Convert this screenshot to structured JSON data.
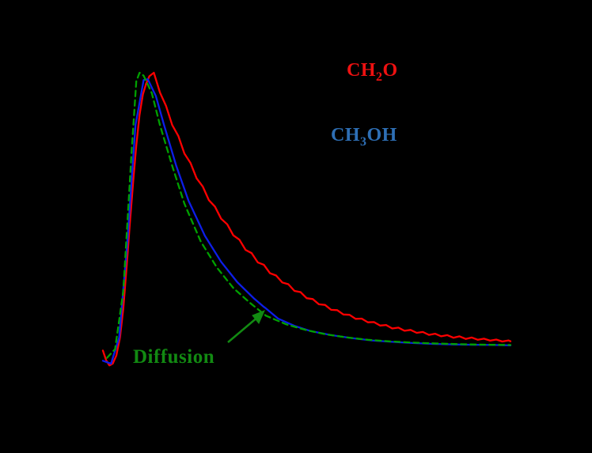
{
  "chart_data": {
    "type": "line",
    "title": "",
    "xlabel": "",
    "ylabel": "",
    "xlim": [
      0,
      10
    ],
    "ylim": [
      0,
      1.1
    ],
    "grid": false,
    "legend_position": "none",
    "background": "#000000",
    "series": [
      {
        "name": "CH2O",
        "color": "#ff0000",
        "style": "solid",
        "points": [
          [
            0,
            0.045
          ],
          [
            0.08,
            0.012
          ],
          [
            0.16,
            -0.006
          ],
          [
            0.24,
            0.0
          ],
          [
            0.33,
            0.028
          ],
          [
            0.42,
            0.09
          ],
          [
            0.5,
            0.19
          ],
          [
            0.58,
            0.33
          ],
          [
            0.66,
            0.48
          ],
          [
            0.74,
            0.62
          ],
          [
            0.82,
            0.75
          ],
          [
            0.9,
            0.855
          ],
          [
            0.98,
            0.925
          ],
          [
            1.06,
            0.962
          ],
          [
            1.14,
            0.988
          ],
          [
            1.25,
            1.0
          ],
          [
            1.4,
            0.932
          ],
          [
            1.55,
            0.886
          ],
          [
            1.7,
            0.82
          ],
          [
            1.85,
            0.783
          ],
          [
            2.0,
            0.722
          ],
          [
            2.15,
            0.69
          ],
          [
            2.3,
            0.637
          ],
          [
            2.45,
            0.609
          ],
          [
            2.6,
            0.562
          ],
          [
            2.75,
            0.54
          ],
          [
            2.9,
            0.498
          ],
          [
            3.05,
            0.479
          ],
          [
            3.2,
            0.441
          ],
          [
            3.35,
            0.426
          ],
          [
            3.5,
            0.391
          ],
          [
            3.65,
            0.38
          ],
          [
            3.8,
            0.348
          ],
          [
            3.95,
            0.34
          ],
          [
            4.1,
            0.311
          ],
          [
            4.25,
            0.303
          ],
          [
            4.4,
            0.279
          ],
          [
            4.55,
            0.273
          ],
          [
            4.7,
            0.25
          ],
          [
            4.85,
            0.246
          ],
          [
            5.0,
            0.225
          ],
          [
            5.15,
            0.222
          ],
          [
            5.3,
            0.204
          ],
          [
            5.45,
            0.202
          ],
          [
            5.6,
            0.185
          ],
          [
            5.75,
            0.184
          ],
          [
            5.9,
            0.169
          ],
          [
            6.05,
            0.168
          ],
          [
            6.2,
            0.154
          ],
          [
            6.35,
            0.155
          ],
          [
            6.5,
            0.142
          ],
          [
            6.65,
            0.143
          ],
          [
            6.8,
            0.131
          ],
          [
            6.95,
            0.133
          ],
          [
            7.1,
            0.121
          ],
          [
            7.25,
            0.124
          ],
          [
            7.4,
            0.113
          ],
          [
            7.55,
            0.116
          ],
          [
            7.7,
            0.106
          ],
          [
            7.85,
            0.109
          ],
          [
            8.0,
            0.099
          ],
          [
            8.15,
            0.103
          ],
          [
            8.3,
            0.094
          ],
          [
            8.45,
            0.098
          ],
          [
            8.6,
            0.089
          ],
          [
            8.75,
            0.094
          ],
          [
            8.9,
            0.085
          ],
          [
            9.05,
            0.09
          ],
          [
            9.2,
            0.082
          ],
          [
            9.35,
            0.086
          ],
          [
            9.5,
            0.079
          ],
          [
            9.65,
            0.083
          ],
          [
            9.8,
            0.076
          ],
          [
            9.95,
            0.08
          ],
          [
            10.0,
            0.077
          ]
        ]
      },
      {
        "name": "CH3OH",
        "color": "#0d1ee8",
        "style": "solid",
        "points": [
          [
            0.0,
            0.01
          ],
          [
            0.2,
            0.0
          ],
          [
            0.4,
            0.09
          ],
          [
            0.6,
            0.42
          ],
          [
            0.8,
            0.82
          ],
          [
            1.0,
            0.975
          ],
          [
            1.1,
            0.978
          ],
          [
            1.3,
            0.92
          ],
          [
            1.5,
            0.82
          ],
          [
            1.8,
            0.68
          ],
          [
            2.1,
            0.56
          ],
          [
            2.5,
            0.44
          ],
          [
            2.9,
            0.35
          ],
          [
            3.3,
            0.28
          ],
          [
            3.7,
            0.225
          ],
          [
            3.95,
            0.195
          ],
          [
            4.0,
            0.19
          ],
          [
            4.3,
            0.155
          ],
          [
            4.7,
            0.13
          ],
          [
            5.1,
            0.112
          ],
          [
            5.6,
            0.098
          ],
          [
            6.1,
            0.088
          ],
          [
            6.6,
            0.08
          ],
          [
            7.1,
            0.075
          ],
          [
            7.6,
            0.071
          ],
          [
            8.1,
            0.068
          ],
          [
            8.6,
            0.066
          ],
          [
            9.1,
            0.065
          ],
          [
            9.6,
            0.064
          ],
          [
            10.0,
            0.063
          ]
        ]
      },
      {
        "name": "Diffusion",
        "color": "#00a000",
        "style": "dashed",
        "points": [
          [
            0.1,
            0.02
          ],
          [
            0.3,
            0.05
          ],
          [
            0.5,
            0.25
          ],
          [
            0.7,
            0.72
          ],
          [
            0.82,
            0.97
          ],
          [
            0.9,
            1.0
          ],
          [
            1.0,
            0.99
          ],
          [
            1.2,
            0.93
          ],
          [
            1.4,
            0.82
          ],
          [
            1.7,
            0.68
          ],
          [
            2.0,
            0.55
          ],
          [
            2.4,
            0.42
          ],
          [
            2.8,
            0.33
          ],
          [
            3.2,
            0.26
          ],
          [
            3.6,
            0.21
          ],
          [
            4.0,
            0.165
          ],
          [
            4.5,
            0.135
          ],
          [
            5.0,
            0.115
          ],
          [
            5.5,
            0.1
          ],
          [
            6.0,
            0.09
          ],
          [
            6.5,
            0.082
          ],
          [
            7.0,
            0.077
          ],
          [
            7.5,
            0.073
          ],
          [
            8.0,
            0.07
          ],
          [
            8.5,
            0.068
          ],
          [
            9.0,
            0.066
          ],
          [
            9.5,
            0.065
          ],
          [
            10.0,
            0.064
          ]
        ]
      }
    ],
    "annotations": {
      "ch2o": {
        "pre": "CH",
        "sub": "2",
        "post": "O",
        "color": "#ee1111"
      },
      "ch3oh": {
        "pre": "CH",
        "sub": "3",
        "post": "OH",
        "color": "#2e6fb5"
      },
      "diffusion": {
        "label": "Diffusion",
        "color": "#128a12"
      }
    }
  }
}
